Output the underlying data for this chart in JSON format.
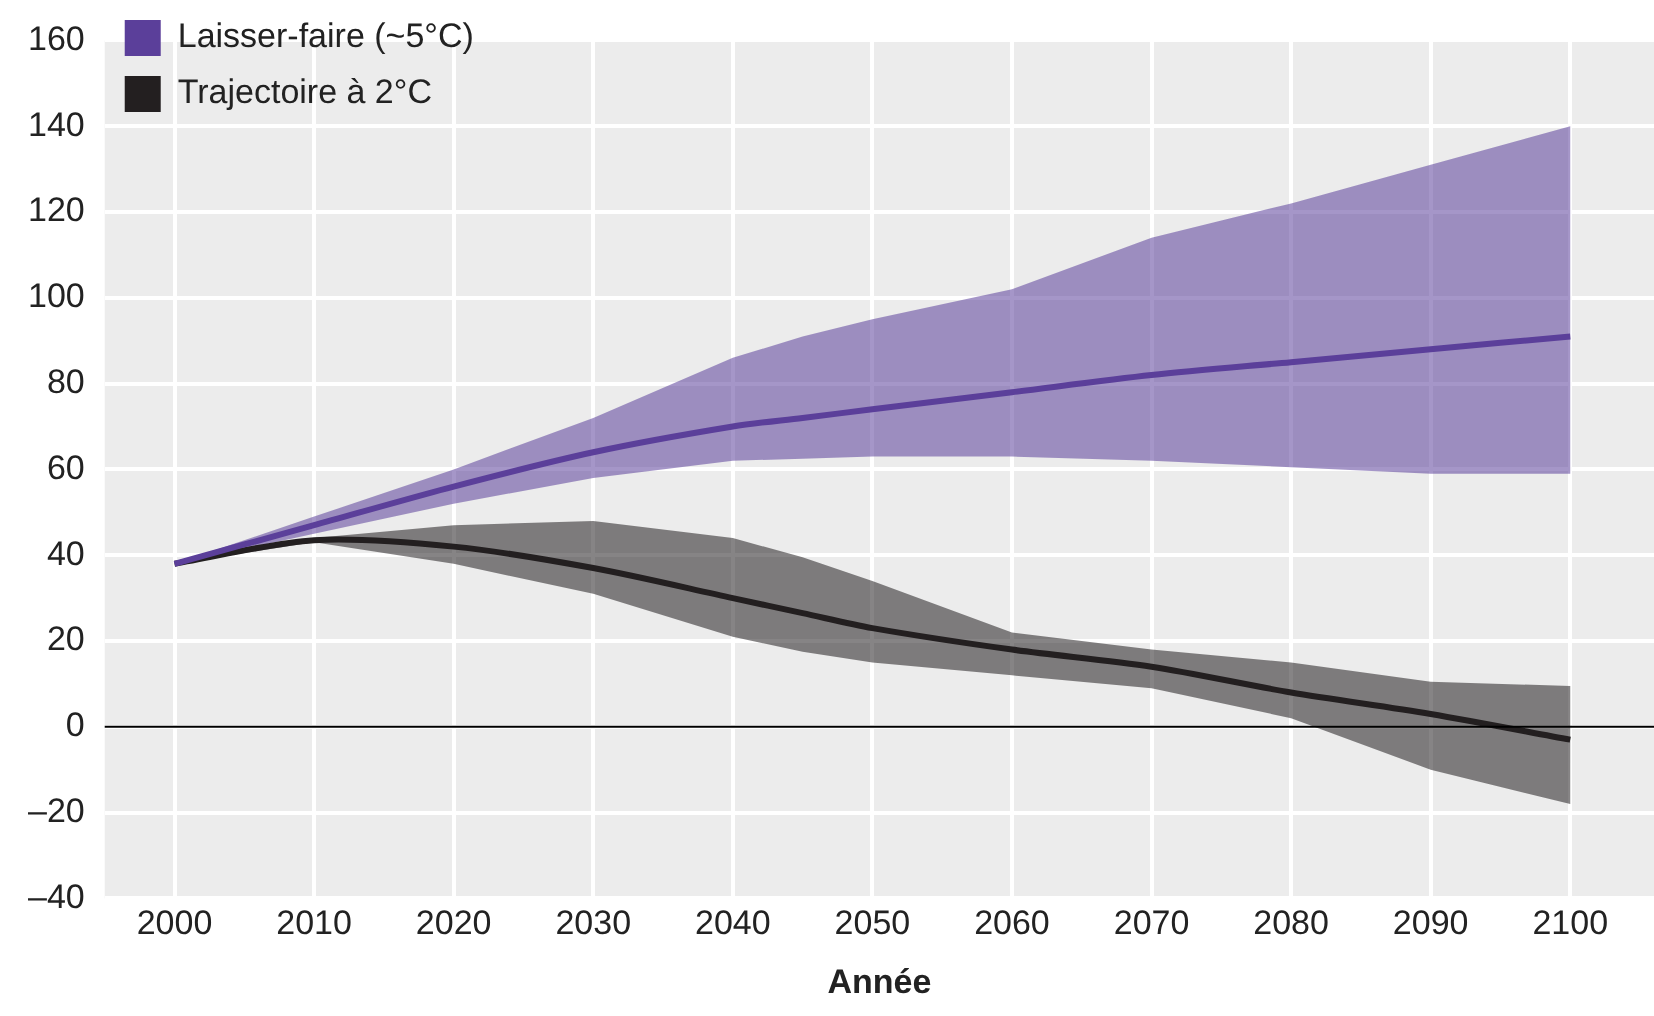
{
  "chart_data": {
    "type": "line",
    "xlabel": "Année",
    "x": [
      2000,
      2010,
      2020,
      2030,
      2040,
      2045,
      2050,
      2060,
      2070,
      2080,
      2090,
      2100
    ],
    "series": [
      {
        "name": "Laisser-faire (~5°C)",
        "color": "#5b3f9a",
        "values": [
          38,
          47,
          56,
          64,
          70,
          72,
          74,
          78,
          82,
          85,
          88,
          91
        ],
        "lower": [
          38,
          45,
          52,
          58,
          62,
          62.5,
          63,
          63,
          62,
          60.5,
          59,
          59
        ],
        "upper": [
          38,
          49,
          60,
          72,
          86,
          91,
          95,
          102,
          114,
          122,
          131,
          140
        ]
      },
      {
        "name": "Trajectoire à 2°C",
        "color": "#231f20",
        "values": [
          38,
          43.5,
          42,
          37,
          30,
          26.5,
          23,
          18,
          14,
          8,
          3,
          -3
        ],
        "lower": [
          38,
          43,
          38,
          31,
          21,
          17.5,
          15,
          12,
          9,
          2,
          -10,
          -18
        ],
        "upper": [
          38,
          44,
          47,
          48,
          44,
          39.5,
          34,
          22,
          18,
          15,
          10.5,
          9.5
        ]
      }
    ],
    "xlim": [
      1995,
      2106
    ],
    "xticks": [
      2000,
      2010,
      2020,
      2030,
      2040,
      2050,
      2060,
      2070,
      2080,
      2090,
      2100
    ],
    "ylim": [
      -40,
      160
    ],
    "yticks": [
      {
        "value": -40,
        "label": "–40"
      },
      {
        "value": -20,
        "label": "–20"
      },
      0,
      20,
      40,
      60,
      80,
      100,
      120,
      140,
      160
    ],
    "ref_lines": [
      {
        "axis": "y",
        "value": 0,
        "color": "#000000"
      }
    ],
    "grid": true,
    "legend": "top left",
    "marker": "none"
  }
}
